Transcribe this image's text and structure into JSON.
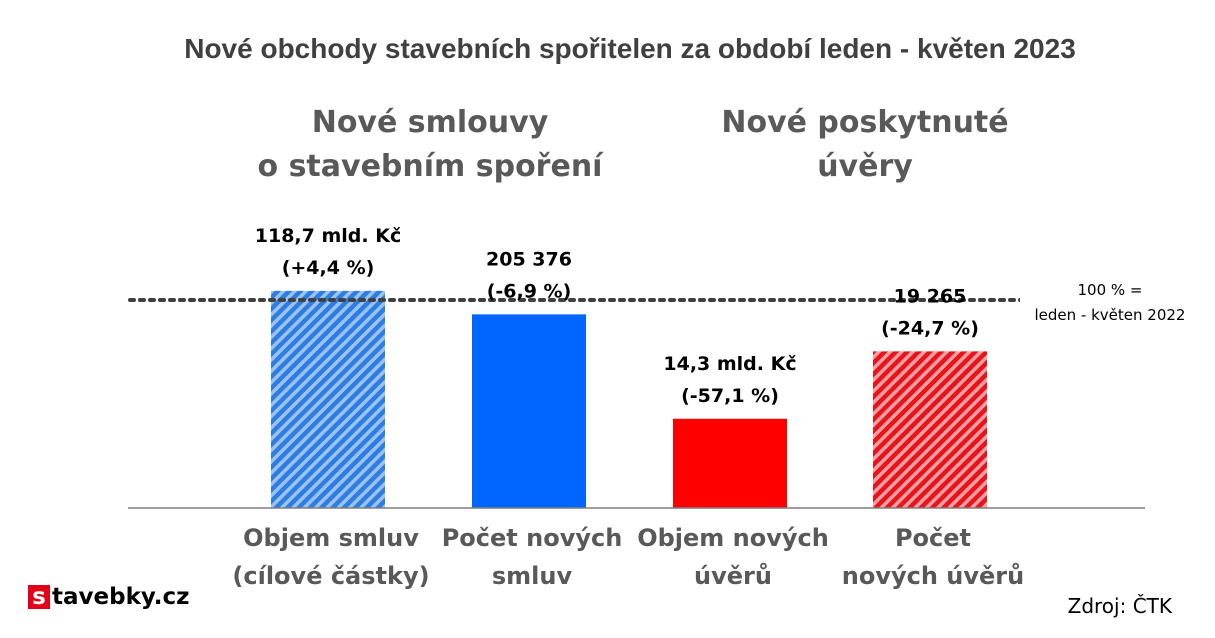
{
  "title": "Nové obchody stavebních spořitelen za období leden - květen 2023",
  "groups": [
    {
      "lines": [
        "Nové smlouvy",
        "o stavebním spoření"
      ]
    },
    {
      "lines": [
        "Nové poskytnuté",
        "úvěry"
      ]
    }
  ],
  "reference": {
    "value": 100,
    "lines": [
      "100 % =",
      "leden - květen 2022"
    ]
  },
  "source": "Zdroj: ČTK",
  "logo": {
    "letter": "s",
    "rest": "tavebky.cz",
    "color": "#e3001b"
  },
  "chart_data": {
    "type": "bar",
    "categories": [
      [
        "Objem smluv",
        "(cílové částky)"
      ],
      [
        "Počet  nových",
        "smluv"
      ],
      [
        "Objem nových",
        "úvěrů"
      ],
      [
        "Počet",
        "nových úvěrů"
      ]
    ],
    "values": [
      104.4,
      93.1,
      42.9,
      75.3
    ],
    "data_labels": [
      [
        "118,7 mld. Kč",
        "(+4,4 %)"
      ],
      [
        "205 376",
        "(-6,9 %)"
      ],
      [
        "14,3 mld. Kč",
        "(-57,1 %)"
      ],
      [
        "19 265",
        "(-24,7 %)"
      ]
    ],
    "colors": [
      "#2e7de0",
      "#0066ff",
      "#ff0000",
      "#e8141c"
    ],
    "hatched": [
      true,
      false,
      false,
      true
    ],
    "ylim": [
      0,
      100
    ],
    "grid": false,
    "legend": "none"
  }
}
